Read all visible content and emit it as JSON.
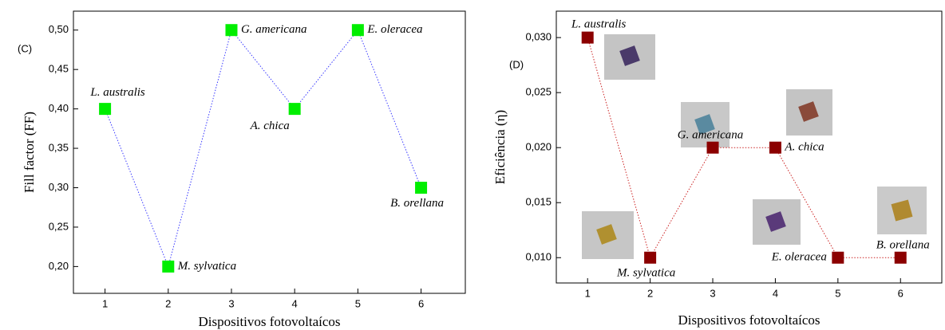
{
  "chart_data": [
    {
      "type": "line",
      "panel_label": "(C)",
      "y_label": "Fill factor (FF)",
      "x_label": "Dispositivos fotovoltaícos",
      "x": [
        1,
        2,
        3,
        4,
        5,
        6
      ],
      "values": [
        0.4,
        0.2,
        0.5,
        0.4,
        0.5,
        0.3
      ],
      "point_labels": [
        "L. australis",
        "M. sylvatica",
        "G. americana",
        "A. chica",
        "E. oleracea",
        "B. orellana"
      ],
      "color": "#00ee00",
      "line_color": "#3b3bff",
      "xlim": [
        0.5,
        6.7
      ],
      "xticks": [
        1,
        2,
        3,
        4,
        5,
        6
      ],
      "ylim": [
        0.166,
        0.524
      ],
      "yticks": [
        {
          "value": 0.2,
          "label": "0,20"
        },
        {
          "value": 0.25,
          "label": "0,25"
        },
        {
          "value": 0.3,
          "label": "0,30"
        },
        {
          "value": 0.35,
          "label": "0,35"
        },
        {
          "value": 0.4,
          "label": "0,40"
        },
        {
          "value": 0.45,
          "label": "0,45"
        },
        {
          "value": 0.5,
          "label": "0,50"
        }
      ]
    },
    {
      "type": "line",
      "panel_label": "(D)",
      "y_label": "Eficiência (η)",
      "x_label": "Dispositivos fotovoltaícos",
      "x": [
        1,
        2,
        3,
        4,
        5,
        6
      ],
      "values": [
        0.03,
        0.01,
        0.02,
        0.02,
        0.01,
        0.01
      ],
      "point_labels": [
        "L. australis",
        "M. sylvatica",
        "G. americana",
        "A. chica",
        "E. oleracea",
        "B. orellana"
      ],
      "color": "#8b0000",
      "line_color": "#cc2222",
      "xlim": [
        0.5,
        6.66
      ],
      "xticks": [
        1,
        2,
        3,
        4,
        5,
        6
      ],
      "ylim": [
        0.0077,
        0.0324
      ],
      "yticks": [
        {
          "value": 0.01,
          "label": "0,010"
        },
        {
          "value": 0.015,
          "label": "0,015"
        },
        {
          "value": 0.02,
          "label": "0,020"
        },
        {
          "value": 0.025,
          "label": "0,025"
        },
        {
          "value": 0.03,
          "label": "0,030"
        }
      ]
    }
  ]
}
